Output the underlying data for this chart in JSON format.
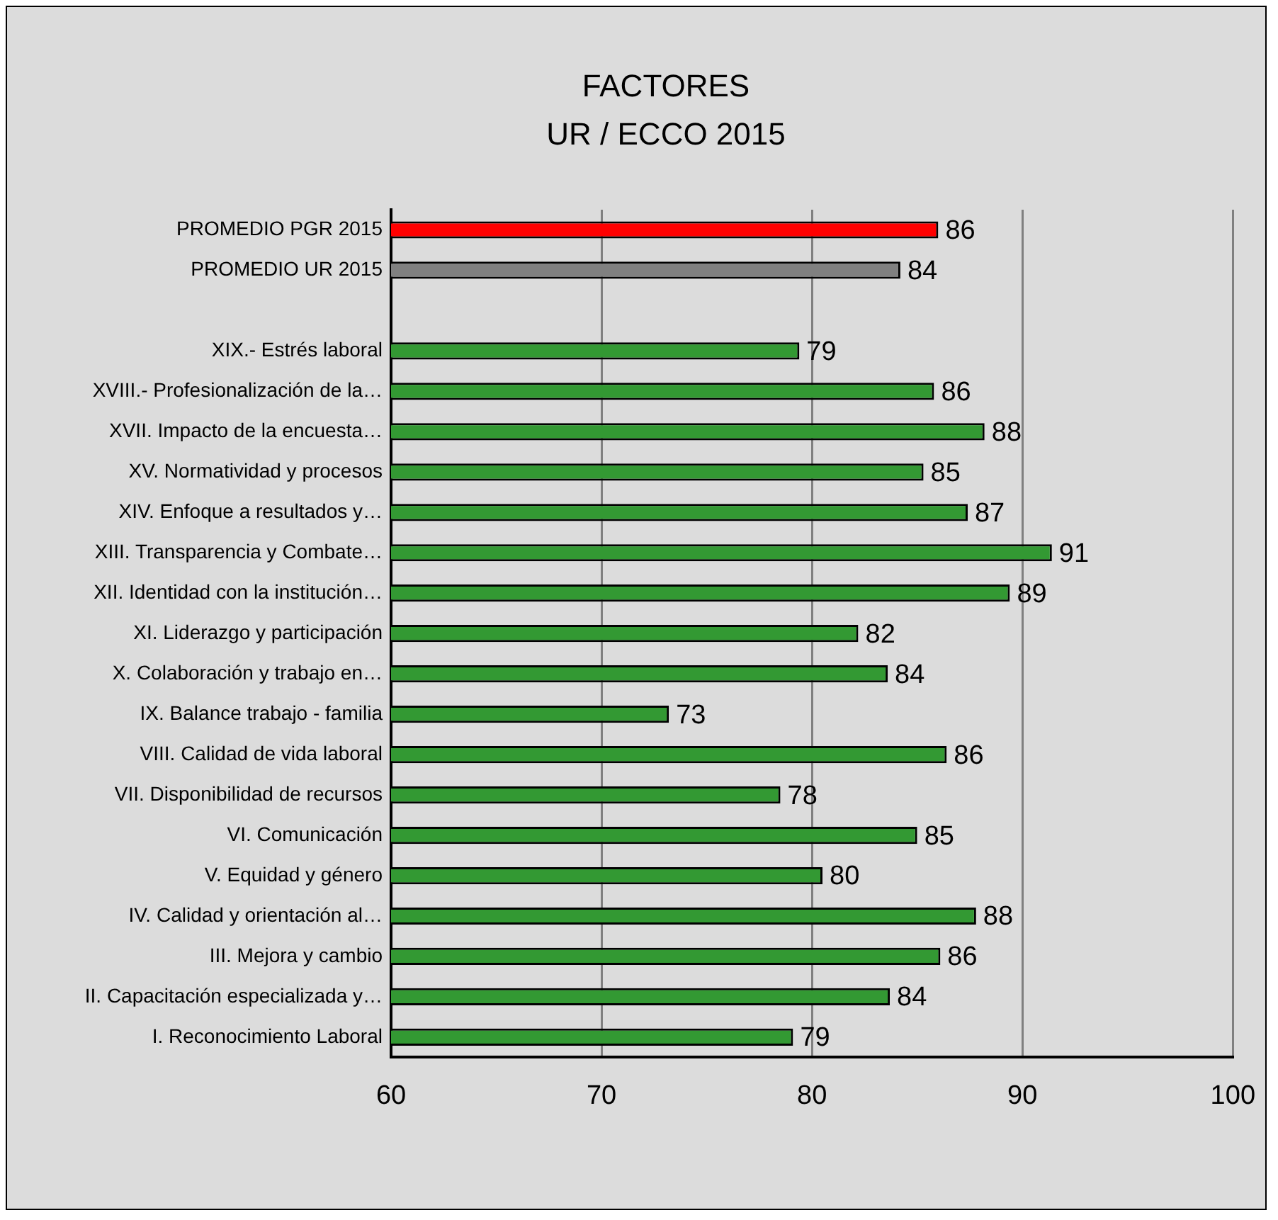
{
  "chart_data": {
    "type": "bar",
    "orientation": "horizontal",
    "title": "FACTORES",
    "subtitle": "UR / ECCO 2015",
    "categories": [
      "PROMEDIO PGR 2015",
      "PROMEDIO UR 2015",
      null,
      "XIX.- Estrés laboral",
      "XVIII.- Profesionalización de la…",
      "XVII. Impacto de la encuesta…",
      "XV. Normatividad y procesos",
      "XIV. Enfoque a resultados y…",
      "XIII. Transparencia y Combate…",
      "XII. Identidad con la institución…",
      "XI. Liderazgo y participación",
      "X. Colaboración y trabajo en…",
      "IX. Balance trabajo - familia",
      "VIII. Calidad de vida laboral",
      "VII. Disponibilidad de recursos",
      "VI. Comunicación",
      "V. Equidad y género",
      "IV. Calidad y orientación al…",
      "III. Mejora y cambio",
      "II. Capacitación especializada y…",
      "I. Reconocimiento Laboral"
    ],
    "values": [
      86.0,
      84.2,
      null,
      79.4,
      85.8,
      88.2,
      85.3,
      87.4,
      91.4,
      89.4,
      82.2,
      83.6,
      73.2,
      86.4,
      78.5,
      85.0,
      80.5,
      87.8,
      86.1,
      83.7,
      79.1
    ],
    "value_labels": [
      "86",
      "84",
      null,
      "79",
      "86",
      "88",
      "85",
      "87",
      "91",
      "89",
      "82",
      "84",
      "73",
      "86",
      "78",
      "85",
      "80",
      "88",
      "86",
      "84",
      "79"
    ],
    "colors": [
      "#ff0000",
      "#808080",
      null,
      "#339933",
      "#339933",
      "#339933",
      "#339933",
      "#339933",
      "#339933",
      "#339933",
      "#339933",
      "#339933",
      "#339933",
      "#339933",
      "#339933",
      "#339933",
      "#339933",
      "#339933",
      "#339933",
      "#339933",
      "#339933"
    ],
    "xlim": [
      60,
      100
    ],
    "xticks": [
      60,
      70,
      80,
      90,
      100
    ],
    "grid": "x",
    "legend": false
  }
}
